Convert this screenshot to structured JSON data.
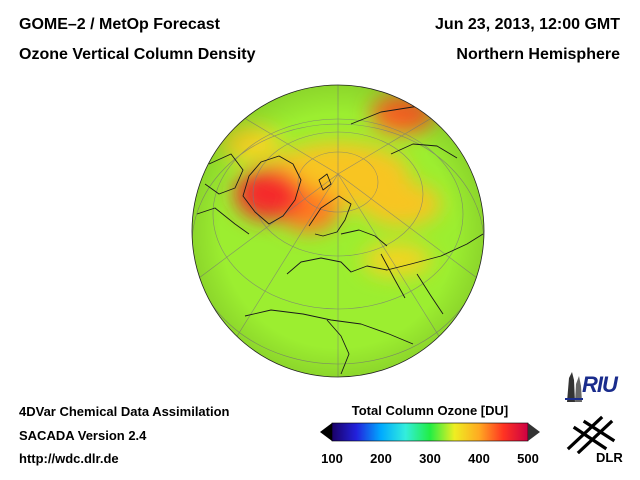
{
  "header": {
    "title_line1": "GOME–2 / MetOp Forecast",
    "title_line2": "Ozone Vertical Column Density",
    "date": "Jun 23, 2013, 12:00 GMT",
    "region": "Northern Hemisphere"
  },
  "footer": {
    "line1": "4DVar Chemical Data Assimilation",
    "line2": "SACADA Version 2.4",
    "line3": "http://wdc.dlr.de"
  },
  "colorbar": {
    "title": "Total Column Ozone [DU]",
    "min": 100,
    "max": 500,
    "ticks": [
      "100",
      "200",
      "300",
      "400",
      "500"
    ],
    "colors": [
      "#1a0066",
      "#2222dd",
      "#00aaff",
      "#33eedd",
      "#22ee44",
      "#eeee22",
      "#ffaa22",
      "#ff3322",
      "#cc0044"
    ]
  },
  "map": {
    "projection": "orthographic",
    "hemisphere": "Northern",
    "base_value_du": 330,
    "features": [
      {
        "name": "greenland-maximum",
        "value_du": 460
      },
      {
        "name": "north-atlantic-high",
        "value_du": 420
      },
      {
        "name": "siberia-high",
        "value_du": 430
      },
      {
        "name": "pole-band",
        "value_du": 380
      },
      {
        "name": "central-asia-band",
        "value_du": 370
      }
    ]
  },
  "logos": {
    "riu": "RIU",
    "dlr": "DLR"
  }
}
